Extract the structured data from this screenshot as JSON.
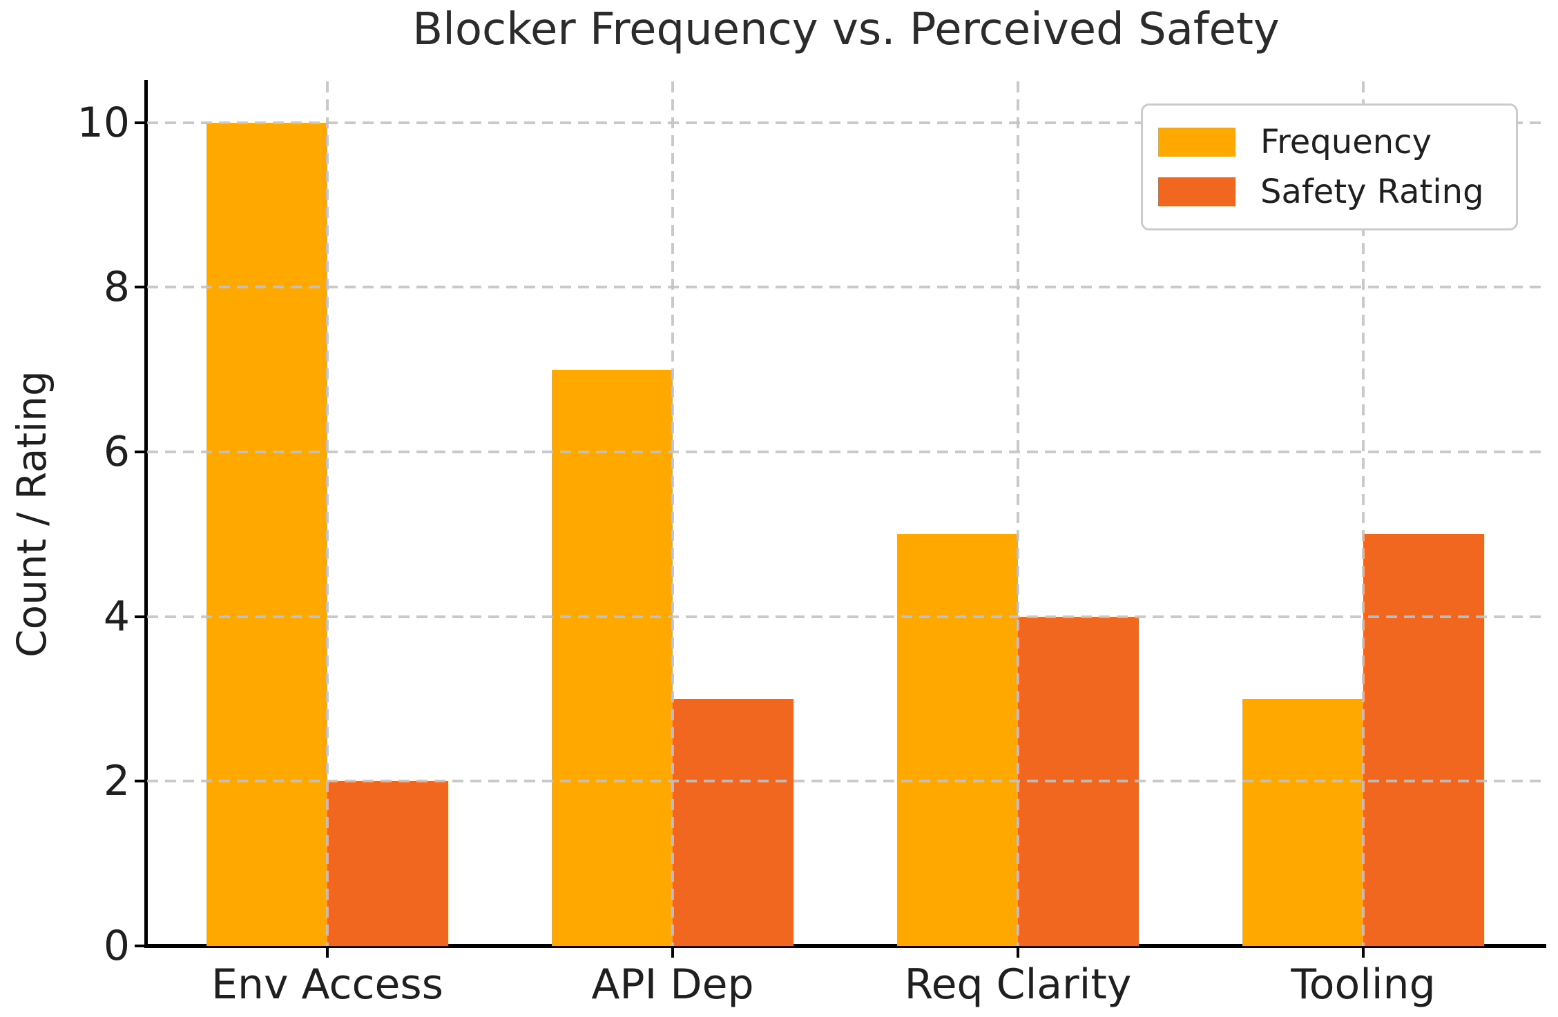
{
  "chart_data": {
    "type": "bar",
    "title": "Blocker Frequency vs. Perceived Safety",
    "xlabel": "",
    "ylabel": "Count / Rating",
    "categories": [
      "Env Access",
      "API Dep",
      "Req Clarity",
      "Tooling"
    ],
    "series": [
      {
        "name": "Frequency",
        "color": "#FFA800",
        "values": [
          10,
          7,
          5,
          3
        ]
      },
      {
        "name": "Safety Rating",
        "color": "#F2671F",
        "values": [
          2,
          3,
          4,
          5
        ]
      }
    ],
    "yticks": [
      0,
      2,
      4,
      6,
      8,
      10
    ],
    "ylim": [
      0,
      10.5
    ],
    "bar_width_fraction": 0.35,
    "grid": "dashed gray, horizontal and vertical, drawn above bars",
    "legend_position": "upper right"
  },
  "colors": {
    "background": "#FFFFFF",
    "grid": "#C2C2C2",
    "axis": "#000000",
    "text": "#1F1F1F",
    "legend_border": "#CBCBCB"
  }
}
